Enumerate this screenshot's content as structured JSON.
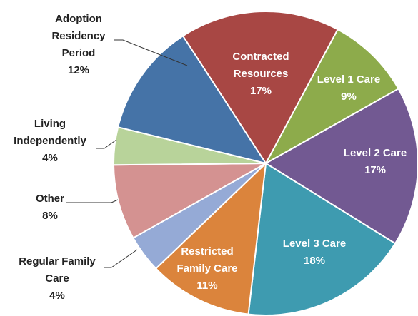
{
  "chart_data": {
    "type": "pie",
    "categories": [
      "Contracted Resources",
      "Level 1 Care",
      "Level 2 Care",
      "Level 3 Care",
      "Restricted Family Care",
      "Regular Family Care",
      "Other",
      "Living Independently",
      "Adoption Residency Period"
    ],
    "values": [
      17,
      9,
      17,
      18,
      11,
      4,
      8,
      4,
      12
    ],
    "value_labels": [
      "17%",
      "9%",
      "17%",
      "18%",
      "11%",
      "4%",
      "8%",
      "4%",
      "12%"
    ],
    "colors": [
      "#a84744",
      "#8dab4b",
      "#725992",
      "#3e9bb0",
      "#db843c",
      "#95aad6",
      "#d49291",
      "#b8d39a",
      "#4573a7"
    ]
  }
}
